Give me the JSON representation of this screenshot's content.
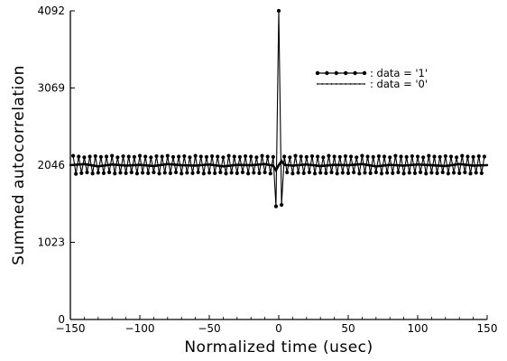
{
  "chart_data": {
    "type": "line",
    "title": "",
    "xlabel": "Normalized time (usec)",
    "ylabel": "Summed autocorrelation",
    "xlim": [
      -150,
      150
    ],
    "ylim": [
      0,
      4092
    ],
    "xticks": [
      -150,
      -100,
      -50,
      0,
      50,
      100,
      150
    ],
    "yticks": [
      0,
      1023,
      2046,
      3069,
      4092
    ],
    "xtick_labels": [
      "−150",
      "−100",
      "−50",
      "0",
      "50",
      "100",
      "150"
    ],
    "ytick_labels": [
      "0",
      "1023",
      "2046",
      "3069",
      "4092"
    ],
    "grid": false,
    "legend_position": "top-right",
    "series": [
      {
        "name": ": data = '1'",
        "marker": "filled-circle",
        "baseline": 2046,
        "noise_amplitude": 130,
        "peak": {
          "x": 0,
          "y": 4092
        },
        "x": [
          -148,
          -146,
          -144,
          -142,
          -140,
          -138,
          -136,
          -134,
          -132,
          -130,
          -128,
          -126,
          -124,
          -122,
          -120,
          -118,
          -116,
          -114,
          -112,
          -110,
          -108,
          -106,
          -104,
          -102,
          -100,
          -98,
          -96,
          -94,
          -92,
          -90,
          -88,
          -86,
          -84,
          -82,
          -80,
          -78,
          -76,
          -74,
          -72,
          -70,
          -68,
          -66,
          -64,
          -62,
          -60,
          -58,
          -56,
          -54,
          -52,
          -50,
          -48,
          -46,
          -44,
          -42,
          -40,
          -38,
          -36,
          -34,
          -32,
          -30,
          -28,
          -26,
          -24,
          -22,
          -20,
          -18,
          -16,
          -14,
          -12,
          -10,
          -8,
          -6,
          -4,
          -2,
          0,
          2,
          4,
          6,
          8,
          10,
          12,
          14,
          16,
          18,
          20,
          22,
          24,
          26,
          28,
          30,
          32,
          34,
          36,
          38,
          40,
          42,
          44,
          46,
          48,
          50,
          52,
          54,
          56,
          58,
          60,
          62,
          64,
          66,
          68,
          70,
          72,
          74,
          76,
          78,
          80,
          82,
          84,
          86,
          88,
          90,
          92,
          94,
          96,
          98,
          100,
          102,
          104,
          106,
          108,
          110,
          112,
          114,
          116,
          118,
          120,
          122,
          124,
          126,
          128,
          130,
          132,
          134,
          136,
          138,
          140,
          142,
          144,
          146,
          148
        ],
        "y": [
          2170,
          1930,
          2160,
          1940,
          2150,
          1950,
          2160,
          1935,
          2165,
          1945,
          2155,
          1940,
          2160,
          1950,
          2170,
          1935,
          2150,
          1945,
          2165,
          1940,
          2160,
          1950,
          2155,
          1935,
          2170,
          1945,
          2160,
          1940,
          2150,
          1950,
          2165,
          1935,
          2160,
          1945,
          2170,
          1940,
          2155,
          1950,
          2160,
          1935,
          2165,
          1945,
          2150,
          1940,
          2170,
          1950,
          2160,
          1935,
          2155,
          1945,
          2165,
          1940,
          2160,
          1950,
          2150,
          1935,
          2170,
          1945,
          2160,
          1940,
          2155,
          1950,
          2165,
          1935,
          2160,
          1945,
          2150,
          1940,
          2170,
          1950,
          2160,
          1935,
          2155,
          1500,
          4092,
          1520,
          2160,
          1950,
          2150,
          1935,
          2170,
          1945,
          2160,
          1940,
          2155,
          1950,
          2165,
          1935,
          2160,
          1945,
          2150,
          1940,
          2170,
          1950,
          2160,
          1935,
          2155,
          1945,
          2165,
          1940,
          2160,
          1950,
          2150,
          1935,
          2170,
          1945,
          2160,
          1940,
          2155,
          1950,
          2165,
          1935,
          2160,
          1945,
          2150,
          1940,
          2170,
          1950,
          2160,
          1935,
          2155,
          1945,
          2165,
          1940,
          2160,
          1950,
          2150,
          1935,
          2170,
          1945,
          2160,
          1940,
          2155,
          1950,
          2165,
          1935,
          2160,
          1945,
          2150,
          1940,
          2170,
          1950,
          2160,
          1935,
          2155,
          1945,
          2165,
          1940,
          2160
        ]
      },
      {
        "name": ": data = '0'",
        "marker": "dot",
        "baseline": 2046,
        "noise_amplitude": 40,
        "x": [
          -150,
          -140,
          -130,
          -120,
          -110,
          -100,
          -90,
          -80,
          -70,
          -60,
          -50,
          -40,
          -30,
          -20,
          -10,
          -4,
          -2,
          0,
          2,
          4,
          10,
          20,
          30,
          40,
          50,
          60,
          70,
          80,
          90,
          100,
          110,
          120,
          130,
          140,
          150
        ],
        "y": [
          2046,
          2060,
          2030,
          2055,
          2040,
          2050,
          2035,
          2060,
          2045,
          2040,
          2055,
          2030,
          2050,
          2045,
          2060,
          2040,
          1980,
          2046,
          2100,
          2050,
          2040,
          2055,
          2035,
          2050,
          2045,
          2060,
          2030,
          2050,
          2040,
          2055,
          2045,
          2035,
          2060,
          2040,
          2046
        ]
      }
    ]
  }
}
